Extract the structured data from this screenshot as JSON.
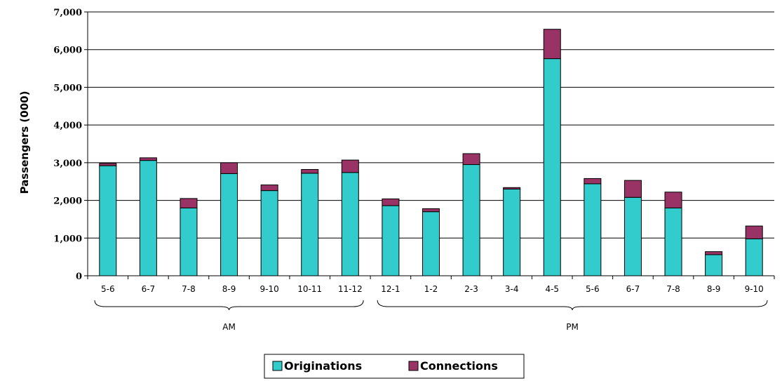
{
  "chart_data": {
    "type": "bar",
    "stacked": true,
    "ylabel": "Passengers  (000)",
    "ylim": [
      0,
      7000
    ],
    "yticks": [
      0,
      1000,
      2000,
      3000,
      4000,
      5000,
      6000,
      7000
    ],
    "ytick_labels": [
      "0",
      "1,000",
      "2,000",
      "3,000",
      "4,000",
      "5,000",
      "6,000",
      "7,000"
    ],
    "grid": true,
    "legend_position": "bottom",
    "categories": [
      "5-6",
      "6-7",
      "7-8",
      "8-9",
      "9-10",
      "10-11",
      "11-12",
      "12-1",
      "1-2",
      "2-3",
      "3-4",
      "4-5",
      "5-6",
      "6-7",
      "7-8",
      "8-9",
      "9-10"
    ],
    "groups": [
      {
        "label": "AM",
        "start": 0,
        "end": 6
      },
      {
        "label": "PM",
        "start": 7,
        "end": 16
      }
    ],
    "series": [
      {
        "name": "Originations",
        "color": "#33CCCC",
        "values": [
          2920,
          3060,
          1800,
          2710,
          2260,
          2720,
          2740,
          1860,
          1700,
          2950,
          2300,
          5760,
          2440,
          2080,
          1800,
          560,
          980
        ]
      },
      {
        "name": "Connections",
        "color": "#993366",
        "values": [
          60,
          70,
          250,
          290,
          150,
          100,
          330,
          180,
          80,
          290,
          40,
          780,
          140,
          450,
          420,
          80,
          340
        ]
      }
    ]
  }
}
